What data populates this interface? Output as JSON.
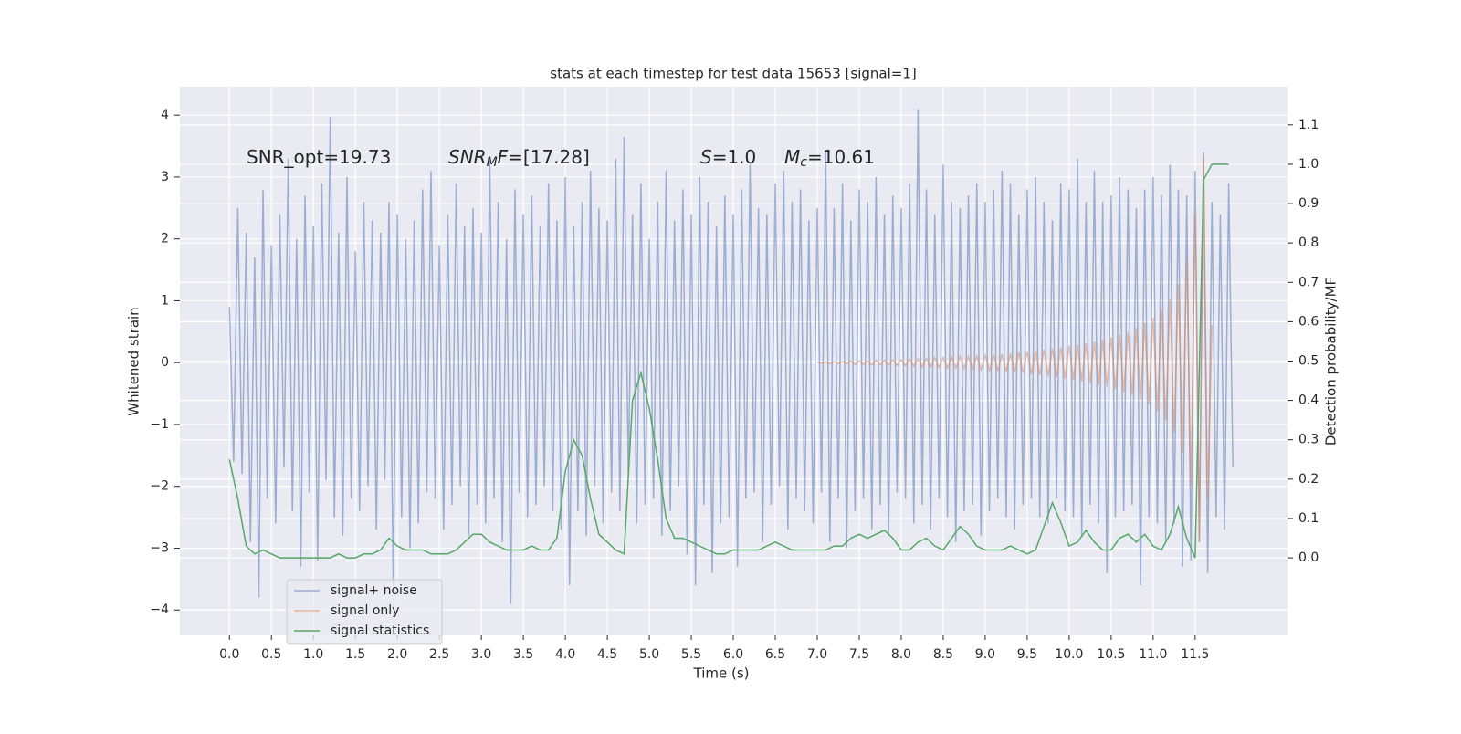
{
  "chart_data": {
    "type": "line",
    "title": "stats at each timestep for test data 15653 [signal=1]",
    "xlabel": "Time (s)",
    "ylabel": "Whitened strain",
    "y2label": "Detection probability/MF",
    "annotations": [
      [
        "SNR_opt=19.73"
      ],
      [
        {
          "text": "SNR",
          "italic": true
        },
        {
          "text": "M",
          "italic": true,
          "sub": true
        },
        {
          "text": "F",
          "italic": true
        },
        "=[17.28]"
      ],
      [
        {
          "text": "S",
          "italic": true
        },
        "=1.0"
      ],
      [
        {
          "text": "M",
          "italic": true
        },
        {
          "text": "c",
          "italic": true,
          "sub": true
        },
        "=10.61"
      ]
    ],
    "grid": true,
    "legend": "lower left",
    "xlim": [
      -0.59,
      12.6
    ],
    "ylim": [
      -4.41,
      4.46
    ],
    "y2lim": [
      -0.197,
      1.197
    ],
    "xticks": [
      {
        "value": 0,
        "label": "0.0"
      },
      0.5,
      {
        "value": 1,
        "label": "1.0"
      },
      1.5,
      {
        "value": 2,
        "label": "2.0"
      },
      2.5,
      {
        "value": 3,
        "label": "3.0"
      },
      3.5,
      {
        "value": 4,
        "label": "4.0"
      },
      4.5,
      {
        "value": 5,
        "label": "5.0"
      },
      5.5,
      {
        "value": 6,
        "label": "6.0"
      },
      6.5,
      {
        "value": 7,
        "label": "7.0"
      },
      7.5,
      {
        "value": 8,
        "label": "8.0"
      },
      8.5,
      {
        "value": 9,
        "label": "9.0"
      },
      9.5,
      {
        "value": 10,
        "label": "10.0"
      },
      10.5,
      {
        "value": 11,
        "label": "11.0"
      },
      11.5
    ],
    "yticks": [
      {
        "value": -4,
        "label": "−4"
      },
      {
        "value": -3,
        "label": "−3"
      },
      {
        "value": -2,
        "label": "−2"
      },
      {
        "value": -1,
        "label": "−1"
      },
      0,
      1,
      2,
      3,
      4
    ],
    "y2ticks": [
      {
        "value": 0,
        "label": "0.0"
      },
      0.1,
      0.2,
      0.3,
      0.4,
      0.5,
      0.6,
      0.7,
      0.8,
      0.9,
      {
        "value": 1,
        "label": "1.0"
      },
      1.1
    ],
    "x": [
      0,
      0.05,
      0.1,
      0.15,
      0.2,
      0.25,
      0.3,
      0.35,
      0.4,
      0.45,
      0.5,
      0.55,
      0.6,
      0.65,
      0.7,
      0.75,
      0.8,
      0.85,
      0.9,
      0.95,
      1,
      1.05,
      1.1,
      1.15,
      1.2,
      1.25,
      1.3,
      1.35,
      1.4,
      1.45,
      1.5,
      1.55,
      1.6,
      1.65,
      1.7,
      1.75,
      1.8,
      1.85,
      1.9,
      1.95,
      2,
      2.05,
      2.1,
      2.15,
      2.2,
      2.25,
      2.3,
      2.35,
      2.4,
      2.45,
      2.5,
      2.55,
      2.6,
      2.65,
      2.7,
      2.75,
      2.8,
      2.85,
      2.9,
      2.95,
      3,
      3.05,
      3.1,
      3.15,
      3.2,
      3.25,
      3.3,
      3.35,
      3.4,
      3.45,
      3.5,
      3.55,
      3.6,
      3.65,
      3.7,
      3.75,
      3.8,
      3.85,
      3.9,
      3.95,
      4,
      4.05,
      4.1,
      4.15,
      4.2,
      4.25,
      4.3,
      4.35,
      4.4,
      4.45,
      4.5,
      4.55,
      4.6,
      4.65,
      4.7,
      4.75,
      4.8,
      4.85,
      4.9,
      4.95,
      5,
      5.05,
      5.1,
      5.15,
      5.2,
      5.25,
      5.3,
      5.35,
      5.4,
      5.45,
      5.5,
      5.55,
      5.6,
      5.65,
      5.7,
      5.75,
      5.8,
      5.85,
      5.9,
      5.95,
      6,
      6.05,
      6.1,
      6.15,
      6.2,
      6.25,
      6.3,
      6.35,
      6.4,
      6.45,
      6.5,
      6.55,
      6.6,
      6.65,
      6.7,
      6.75,
      6.8,
      6.85,
      6.9,
      6.95,
      7,
      7.05,
      7.1,
      7.15,
      7.2,
      7.25,
      7.3,
      7.35,
      7.4,
      7.45,
      7.5,
      7.55,
      7.6,
      7.65,
      7.7,
      7.75,
      7.8,
      7.85,
      7.9,
      7.95,
      8,
      8.05,
      8.1,
      8.15,
      8.2,
      8.25,
      8.3,
      8.35,
      8.4,
      8.45,
      8.5,
      8.55,
      8.6,
      8.65,
      8.7,
      8.75,
      8.8,
      8.85,
      8.9,
      8.95,
      9,
      9.05,
      9.1,
      9.15,
      9.2,
      9.25,
      9.3,
      9.35,
      9.4,
      9.45,
      9.5,
      9.55,
      9.6,
      9.65,
      9.7,
      9.75,
      9.8,
      9.85,
      9.9,
      9.95,
      10,
      10.05,
      10.1,
      10.15,
      10.2,
      10.25,
      10.3,
      10.35,
      10.4,
      10.45,
      10.5,
      10.55,
      10.6,
      10.65,
      10.7,
      10.75,
      10.8,
      10.85,
      10.9,
      10.95,
      11,
      11.05,
      11.1,
      11.15,
      11.2,
      11.25,
      11.3,
      11.35,
      11.4,
      11.45,
      11.5,
      11.55,
      11.6,
      11.65,
      11.7,
      11.75,
      11.8,
      11.85,
      11.9,
      11.95
    ],
    "series": [
      {
        "name": "signal+ noise",
        "color": "#4c72b0",
        "opacity": 0.5,
        "values": [
          0.9,
          -1.6,
          2.5,
          -1.8,
          2.1,
          -2.9,
          1.7,
          -3.8,
          2.8,
          -2.2,
          1.9,
          -2.6,
          2.4,
          -1.7,
          3.3,
          -2.4,
          2.0,
          -3.3,
          2.7,
          -2.1,
          2.2,
          -3.2,
          2.9,
          -1.9,
          3.97,
          -2.5,
          2.1,
          -2.8,
          3.0,
          -2.2,
          1.8,
          -2.4,
          2.6,
          -2.0,
          2.3,
          -2.7,
          2.1,
          -1.9,
          2.6,
          -3.6,
          2.4,
          -2.5,
          2.0,
          -3.0,
          2.3,
          -2.6,
          2.8,
          -2.1,
          3.1,
          -2.2,
          1.9,
          -2.7,
          2.4,
          -2.3,
          2.9,
          -2.0,
          2.2,
          -2.8,
          2.5,
          -2.3,
          2.1,
          -2.6,
          3.3,
          -2.2,
          2.6,
          -2.9,
          2.0,
          -3.9,
          2.8,
          -2.1,
          2.4,
          -2.5,
          2.7,
          -2.3,
          2.2,
          -2.0,
          2.9,
          -2.4,
          2.3,
          -2.7,
          3.0,
          -3.6,
          2.2,
          -2.4,
          2.6,
          -2.8,
          3.1,
          -2.0,
          2.5,
          -2.6,
          2.3,
          -2.1,
          3.3,
          -2.4,
          3.65,
          -1.8,
          2.4,
          -2.6,
          2.9,
          -2.3,
          2.0,
          -2.2,
          2.6,
          -2.8,
          3.1,
          -2.4,
          2.3,
          -2.0,
          2.8,
          -3.1,
          2.4,
          -3.6,
          3.0,
          -2.3,
          2.6,
          -3.4,
          2.2,
          -2.6,
          2.7,
          -2.5,
          2.4,
          -3.3,
          2.8,
          -2.2,
          3.2,
          -2.1,
          2.5,
          -2.9,
          2.4,
          -2.3,
          2.9,
          -2.0,
          3.1,
          -2.7,
          2.6,
          -2.2,
          2.8,
          -2.4,
          2.3,
          -2.6,
          2.5,
          -2.1,
          3.4,
          -2.9,
          2.5,
          -2.2,
          2.9,
          -3.0,
          2.3,
          -2.4,
          2.8,
          -2.2,
          2.6,
          -2.7,
          3.0,
          -2.3,
          2.4,
          -2.8,
          2.7,
          -2.1,
          2.5,
          -2.2,
          2.9,
          -2.6,
          4.1,
          -2.3,
          2.8,
          -2.7,
          2.4,
          -2.2,
          3.2,
          -2.5,
          2.6,
          -2.9,
          2.5,
          -2.4,
          2.7,
          -2.3,
          2.9,
          -2.8,
          2.6,
          -2.4,
          2.8,
          -2.2,
          3.1,
          -2.5,
          2.9,
          -2.7,
          2.4,
          -2.3,
          2.8,
          -2.2,
          3.0,
          -2.5,
          2.6,
          -2.6,
          2.3,
          -2.2,
          2.9,
          -2.4,
          2.8,
          -2.5,
          3.3,
          -2.8,
          2.6,
          -2.3,
          3.1,
          -2.6,
          2.6,
          -3.4,
          2.7,
          -2.5,
          3.0,
          -2.4,
          2.8,
          -2.3,
          2.5,
          -3.6,
          2.8,
          -2.5,
          3.0,
          -2.6,
          2.7,
          -2.9,
          3.2,
          -2.6,
          2.8,
          -3.3,
          2.7,
          -3.2,
          3.1,
          -2.9,
          3.4,
          -3.4,
          2.6,
          -2.5,
          2.4,
          -2.7,
          2.9,
          -1.7
        ]
      },
      {
        "name": "signal only",
        "color": "#dd8452",
        "opacity": 0.5,
        "values": [
          null,
          null,
          null,
          null,
          null,
          null,
          null,
          null,
          null,
          null,
          null,
          null,
          null,
          null,
          null,
          null,
          null,
          null,
          null,
          null,
          null,
          null,
          null,
          null,
          null,
          null,
          null,
          null,
          null,
          null,
          null,
          null,
          null,
          null,
          null,
          null,
          null,
          null,
          null,
          null,
          null,
          null,
          null,
          null,
          null,
          null,
          null,
          null,
          null,
          null,
          null,
          null,
          null,
          null,
          null,
          null,
          null,
          null,
          null,
          null,
          null,
          null,
          null,
          null,
          null,
          null,
          null,
          null,
          null,
          null,
          null,
          null,
          null,
          null,
          null,
          null,
          null,
          null,
          null,
          null,
          null,
          null,
          null,
          null,
          null,
          null,
          null,
          null,
          null,
          null,
          null,
          null,
          null,
          null,
          null,
          null,
          null,
          null,
          null,
          null,
          null,
          null,
          null,
          null,
          null,
          null,
          null,
          null,
          null,
          null,
          null,
          null,
          null,
          null,
          null,
          null,
          null,
          null,
          null,
          null,
          null,
          null,
          null,
          null,
          null,
          null,
          null,
          null,
          null,
          null,
          null,
          null,
          null,
          null,
          null,
          null,
          null,
          null,
          null,
          null,
          0.01,
          -0.01,
          0.01,
          -0.02,
          0.02,
          -0.02,
          0.02,
          -0.02,
          0.03,
          -0.03,
          0.03,
          -0.03,
          0.03,
          -0.04,
          0.04,
          -0.04,
          0.04,
          -0.04,
          0.05,
          -0.05,
          0.05,
          -0.05,
          0.06,
          -0.06,
          0.06,
          -0.07,
          0.07,
          -0.07,
          0.08,
          -0.08,
          0.08,
          -0.09,
          0.09,
          -0.09,
          0.1,
          -0.1,
          0.1,
          -0.11,
          0.11,
          -0.12,
          0.12,
          -0.13,
          0.13,
          -0.14,
          0.14,
          -0.15,
          0.15,
          -0.16,
          0.17,
          -0.17,
          0.18,
          -0.19,
          0.19,
          -0.2,
          0.21,
          -0.22,
          0.23,
          -0.24,
          0.25,
          -0.26,
          0.27,
          -0.28,
          0.29,
          -0.3,
          0.31,
          -0.33,
          0.34,
          -0.36,
          0.37,
          -0.39,
          0.41,
          -0.43,
          0.45,
          -0.48,
          0.5,
          -0.53,
          0.56,
          -0.6,
          0.64,
          -0.68,
          0.73,
          -0.79,
          0.85,
          -0.93,
          1.02,
          -1.13,
          1.27,
          -1.45,
          1.7,
          -2.0,
          2.4,
          -2.9,
          3.35,
          -2.2,
          0.6,
          null,
          null,
          null,
          null,
          null
        ]
      },
      {
        "name": "signal statistics",
        "color": "#55a868",
        "axis": "y2",
        "x": [
          0,
          0.1,
          0.2,
          0.3,
          0.4,
          0.5,
          0.6,
          0.7,
          0.8,
          0.9,
          1,
          1.1,
          1.2,
          1.3,
          1.4,
          1.5,
          1.6,
          1.7,
          1.8,
          1.9,
          2,
          2.1,
          2.2,
          2.3,
          2.4,
          2.5,
          2.6,
          2.7,
          2.8,
          2.9,
          3,
          3.1,
          3.2,
          3.3,
          3.4,
          3.5,
          3.6,
          3.7,
          3.8,
          3.9,
          4,
          4.1,
          4.2,
          4.3,
          4.4,
          4.5,
          4.6,
          4.7,
          4.8,
          4.9,
          5,
          5.1,
          5.2,
          5.3,
          5.4,
          5.5,
          5.6,
          5.7,
          5.8,
          5.9,
          6,
          6.1,
          6.2,
          6.3,
          6.4,
          6.5,
          6.6,
          6.7,
          6.8,
          6.9,
          7,
          7.1,
          7.2,
          7.3,
          7.4,
          7.5,
          7.6,
          7.7,
          7.8,
          7.9,
          8,
          8.1,
          8.2,
          8.3,
          8.4,
          8.5,
          8.6,
          8.7,
          8.8,
          8.9,
          9,
          9.1,
          9.2,
          9.3,
          9.4,
          9.5,
          9.6,
          9.7,
          9.8,
          9.9,
          10,
          10.1,
          10.2,
          10.3,
          10.4,
          10.5,
          10.6,
          10.7,
          10.8,
          10.9,
          11,
          11.1,
          11.2,
          11.3,
          11.4,
          11.5,
          11.6,
          11.7,
          11.8,
          11.9
        ],
        "values": [
          0.25,
          0.15,
          0.03,
          0.01,
          0.02,
          0.01,
          0.0,
          0.0,
          0.0,
          0.0,
          0.0,
          0.0,
          0.0,
          0.01,
          0.0,
          0.0,
          0.01,
          0.01,
          0.02,
          0.05,
          0.03,
          0.02,
          0.02,
          0.02,
          0.01,
          0.01,
          0.01,
          0.02,
          0.04,
          0.06,
          0.06,
          0.04,
          0.03,
          0.02,
          0.02,
          0.02,
          0.03,
          0.02,
          0.02,
          0.05,
          0.22,
          0.3,
          0.26,
          0.15,
          0.06,
          0.04,
          0.02,
          0.01,
          0.4,
          0.47,
          0.38,
          0.25,
          0.1,
          0.05,
          0.05,
          0.04,
          0.03,
          0.02,
          0.01,
          0.01,
          0.02,
          0.02,
          0.02,
          0.02,
          0.03,
          0.04,
          0.03,
          0.02,
          0.02,
          0.02,
          0.02,
          0.02,
          0.03,
          0.03,
          0.05,
          0.06,
          0.05,
          0.06,
          0.07,
          0.05,
          0.02,
          0.02,
          0.04,
          0.05,
          0.03,
          0.02,
          0.05,
          0.08,
          0.06,
          0.03,
          0.02,
          0.02,
          0.02,
          0.03,
          0.02,
          0.01,
          0.02,
          0.08,
          0.14,
          0.09,
          0.03,
          0.04,
          0.07,
          0.04,
          0.02,
          0.02,
          0.05,
          0.06,
          0.04,
          0.06,
          0.03,
          0.02,
          0.06,
          0.13,
          0.05,
          0.0,
          0.96,
          1.0,
          1.0,
          1.0
        ]
      }
    ]
  }
}
